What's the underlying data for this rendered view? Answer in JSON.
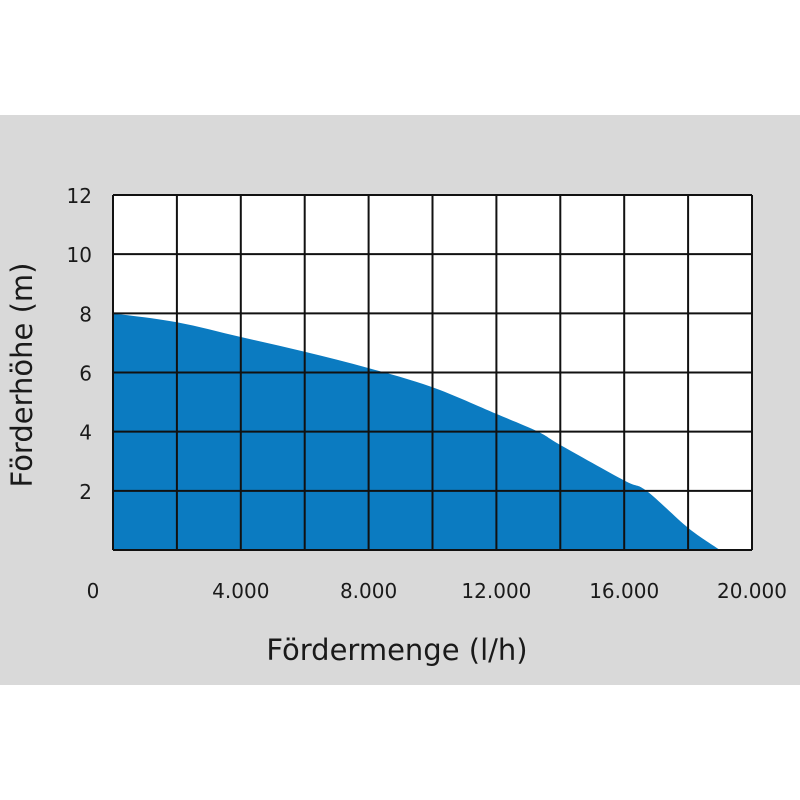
{
  "chart_data": {
    "type": "area",
    "title": "",
    "xlabel": "Fördermenge (l/h)",
    "ylabel": "Förderhöhe (m)",
    "xlim": [
      0,
      20000
    ],
    "ylim": [
      0,
      12
    ],
    "x_ticks": [
      0,
      4000,
      8000,
      12000,
      16000,
      20000
    ],
    "x_tick_labels": [
      "0",
      "4.000",
      "8.000",
      "12.000",
      "16.000",
      "20.000"
    ],
    "y_ticks": [
      2,
      4,
      6,
      8,
      10,
      12
    ],
    "y_tick_labels": [
      "2",
      "4",
      "6",
      "8",
      "10",
      "12"
    ],
    "grid": true,
    "grid_x_step": 2000,
    "grid_y_step": 2,
    "fill_color": "#0b7bc1",
    "background_color": "#d9d9d9",
    "x": [
      0,
      2000,
      4000,
      6000,
      8000,
      10000,
      12000,
      13300,
      14000,
      16000,
      16700,
      18000,
      19000
    ],
    "y": [
      8,
      7.7,
      7.2,
      6.7,
      6.15,
      5.5,
      4.6,
      4.0,
      3.55,
      2.35,
      2.0,
      0.75,
      0
    ]
  }
}
